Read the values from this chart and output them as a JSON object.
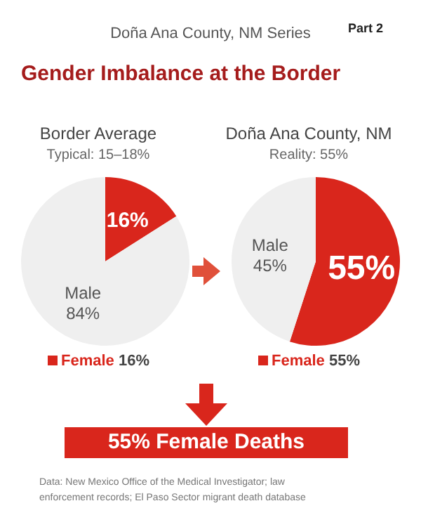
{
  "chart_data": [
    {
      "type": "other",
      "title": "Gender Imbalance at the Border",
      "subtitle": "Doña Ana County, NM Series",
      "annotations": [
        "Part 2"
      ]
    },
    {
      "type": "pie",
      "title": "Border Average",
      "subtitle": "Typical: 15–18%",
      "categories": [
        "Female",
        "Male"
      ],
      "values": [
        16,
        84
      ],
      "colors": [
        "#d9261c",
        "#efefef"
      ],
      "value_labels": [
        "16%",
        "84%"
      ],
      "legend": "bottom"
    },
    {
      "type": "pie",
      "title": "Doña Ana County, NM",
      "subtitle": "Reality: 55%",
      "categories": [
        "Female",
        "Male"
      ],
      "values": [
        55,
        45
      ],
      "colors": [
        "#d9261c",
        "#efefef"
      ],
      "value_labels": [
        "55%",
        "45%"
      ],
      "legend": "bottom"
    },
    {
      "type": "other",
      "annotations": [
        "55% Female Deaths",
        "Data: New Mexico Office of the Medical Investigator; law enforcement records; El Paso Sector migrant death database"
      ]
    }
  ]
}
